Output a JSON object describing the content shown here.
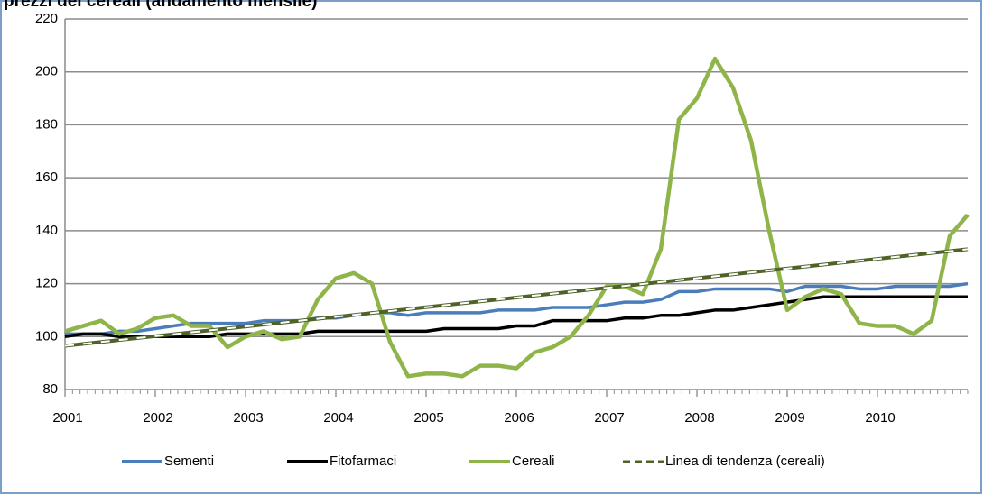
{
  "chart_data": {
    "type": "line",
    "title": "prezzi dei cereali (andamento mensile)",
    "x": [
      2001.0,
      2001.2,
      2001.4,
      2001.6,
      2001.8,
      2002.0,
      2002.2,
      2002.4,
      2002.6,
      2002.8,
      2003.0,
      2003.2,
      2003.4,
      2003.6,
      2003.8,
      2004.0,
      2004.2,
      2004.4,
      2004.6,
      2004.8,
      2005.0,
      2005.2,
      2005.4,
      2005.6,
      2005.8,
      2006.0,
      2006.2,
      2006.4,
      2006.6,
      2006.8,
      2007.0,
      2007.2,
      2007.4,
      2007.6,
      2007.8,
      2008.0,
      2008.2,
      2008.4,
      2008.6,
      2008.8,
      2009.0,
      2009.2,
      2009.4,
      2009.6,
      2009.8,
      2010.0,
      2010.2,
      2010.4,
      2010.6,
      2010.8,
      2011.0
    ],
    "series": [
      {
        "name": "Sementi",
        "color": "#4a7ebb",
        "values": [
          101,
          101,
          101,
          102,
          102,
          103,
          104,
          105,
          105,
          105,
          105,
          106,
          106,
          106,
          107,
          107,
          108,
          109,
          109,
          108,
          109,
          109,
          109,
          109,
          110,
          110,
          110,
          111,
          111,
          111,
          112,
          113,
          113,
          114,
          117,
          117,
          118,
          118,
          118,
          118,
          117,
          119,
          119,
          119,
          118,
          118,
          119,
          119,
          119,
          119,
          120
        ]
      },
      {
        "name": "Fitofarmaci",
        "color": "#000000",
        "values": [
          100,
          101,
          101,
          100,
          100,
          100,
          100,
          100,
          100,
          101,
          101,
          101,
          101,
          101,
          102,
          102,
          102,
          102,
          102,
          102,
          102,
          103,
          103,
          103,
          103,
          104,
          104,
          106,
          106,
          106,
          106,
          107,
          107,
          108,
          108,
          109,
          110,
          110,
          111,
          112,
          113,
          114,
          115,
          115,
          115,
          115,
          115,
          115,
          115,
          115,
          115
        ]
      },
      {
        "name": "Cereali",
        "color": "#8fb54a",
        "values": [
          102,
          104,
          106,
          101,
          103,
          107,
          108,
          104,
          104,
          96,
          100,
          102,
          99,
          100,
          114,
          122,
          124,
          120,
          98,
          85,
          86,
          86,
          85,
          89,
          89,
          88,
          94,
          96,
          100,
          108,
          119,
          119,
          116,
          133,
          182,
          190,
          205,
          194,
          174,
          140,
          110,
          115,
          118,
          116,
          105,
          104,
          104,
          101,
          106,
          138,
          146
        ]
      }
    ],
    "trend": {
      "name": "Linea di tendenza (cereali)",
      "color": "#4f6228",
      "x": [
        2001,
        2011
      ],
      "values": [
        96.5,
        133
      ]
    },
    "xlim": [
      2001,
      2011
    ],
    "xticks": [
      2001,
      2002,
      2003,
      2004,
      2005,
      2006,
      2007,
      2008,
      2009,
      2010
    ],
    "ylim": [
      80,
      220
    ],
    "yticks": [
      80,
      100,
      120,
      140,
      160,
      180,
      200,
      220
    ],
    "grid": true
  }
}
